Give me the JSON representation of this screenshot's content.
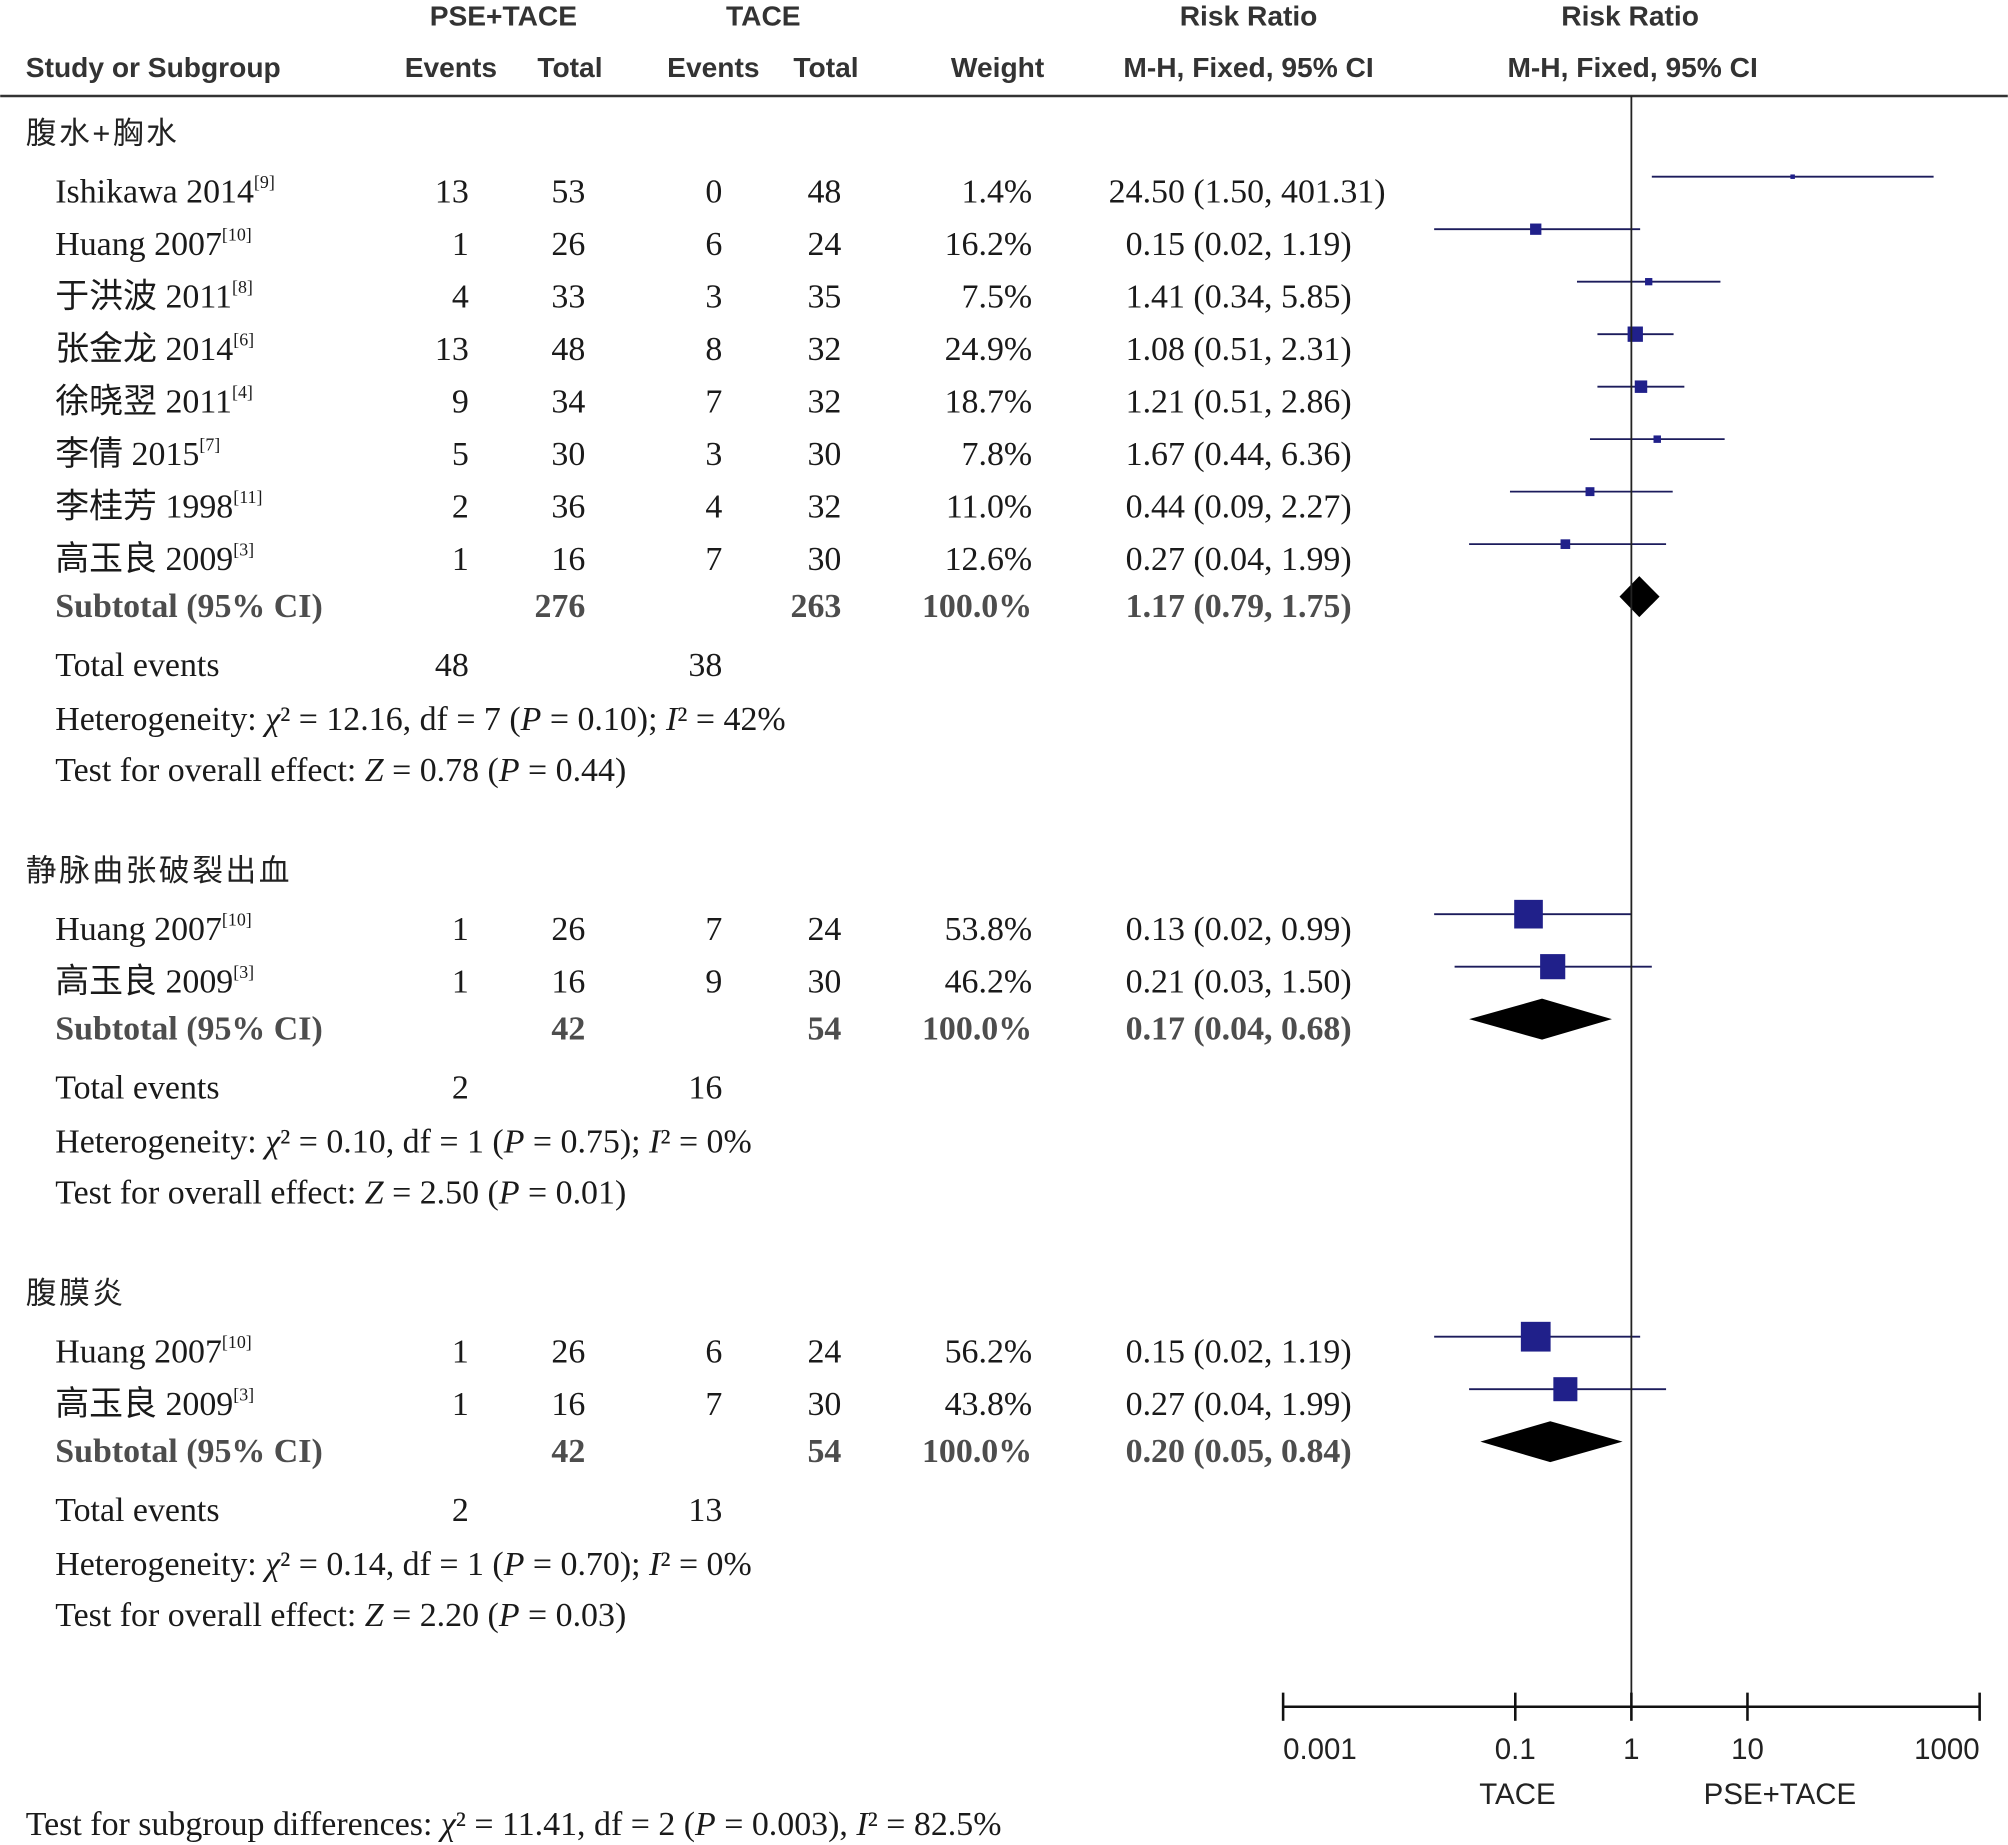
{
  "chart_data": {
    "type": "scatter",
    "variant": "forest-plot",
    "x_scale": "log",
    "xlim": [
      0.001,
      1000
    ],
    "x_ticks": [
      "0.001",
      "0.1",
      "1",
      "10",
      "1000"
    ],
    "reference_line": 1,
    "favours_left": "TACE",
    "favours_right": "PSE+TACE",
    "columns": {
      "group_exp": "PSE+TACE",
      "group_ctrl": "TACE",
      "effect_title": "Risk Ratio",
      "plot_title": "Risk Ratio",
      "study": "Study or Subgroup",
      "events_exp": "Events",
      "total_exp": "Total",
      "events_ctrl": "Events",
      "total_ctrl": "Total",
      "weight": "Weight",
      "effect_method": "M-H, Fixed, 95% CI",
      "plot_method": "M-H, Fixed, 95% CI"
    },
    "subgroups": [
      {
        "name": "腹水+胸水",
        "studies": [
          {
            "name": "Ishikawa 2014",
            "ref": "[9]",
            "events_exp": 13,
            "total_exp": 53,
            "events_ctrl": 0,
            "total_ctrl": 48,
            "weight": "1.4%",
            "rr": 24.5,
            "ci_low": 1.5,
            "ci_high": 401.31,
            "ci_text": "24.50 (1.50, 401.31)"
          },
          {
            "name": "Huang 2007",
            "ref": "[10]",
            "events_exp": 1,
            "total_exp": 26,
            "events_ctrl": 6,
            "total_ctrl": 24,
            "weight": "16.2%",
            "rr": 0.15,
            "ci_low": 0.02,
            "ci_high": 1.19,
            "ci_text": "0.15 (0.02, 1.19)"
          },
          {
            "name": "于洪波 2011",
            "ref": "[8]",
            "events_exp": 4,
            "total_exp": 33,
            "events_ctrl": 3,
            "total_ctrl": 35,
            "weight": "7.5%",
            "rr": 1.41,
            "ci_low": 0.34,
            "ci_high": 5.85,
            "ci_text": "1.41 (0.34, 5.85)"
          },
          {
            "name": "张金龙 2014",
            "ref": "[6]",
            "events_exp": 13,
            "total_exp": 48,
            "events_ctrl": 8,
            "total_ctrl": 32,
            "weight": "24.9%",
            "rr": 1.08,
            "ci_low": 0.51,
            "ci_high": 2.31,
            "ci_text": "1.08 (0.51, 2.31)"
          },
          {
            "name": "徐晓翌 2011",
            "ref": "[4]",
            "events_exp": 9,
            "total_exp": 34,
            "events_ctrl": 7,
            "total_ctrl": 32,
            "weight": "18.7%",
            "rr": 1.21,
            "ci_low": 0.51,
            "ci_high": 2.86,
            "ci_text": "1.21 (0.51, 2.86)"
          },
          {
            "name": "李倩 2015",
            "ref": "[7]",
            "events_exp": 5,
            "total_exp": 30,
            "events_ctrl": 3,
            "total_ctrl": 30,
            "weight": "7.8%",
            "rr": 1.67,
            "ci_low": 0.44,
            "ci_high": 6.36,
            "ci_text": "1.67 (0.44, 6.36)"
          },
          {
            "name": "李桂芳 1998",
            "ref": "[11]",
            "events_exp": 2,
            "total_exp": 36,
            "events_ctrl": 4,
            "total_ctrl": 32,
            "weight": "11.0%",
            "rr": 0.44,
            "ci_low": 0.09,
            "ci_high": 2.27,
            "ci_text": "0.44 (0.09, 2.27)"
          },
          {
            "name": "高玉良 2009",
            "ref": "[3]",
            "events_exp": 1,
            "total_exp": 16,
            "events_ctrl": 7,
            "total_ctrl": 30,
            "weight": "12.6%",
            "rr": 0.27,
            "ci_low": 0.04,
            "ci_high": 1.99,
            "ci_text": "0.27 (0.04, 1.99)"
          }
        ],
        "subtotal": {
          "label": "Subtotal (95% CI)",
          "total_exp": 276,
          "total_ctrl": 263,
          "weight": "100.0%",
          "rr": 1.17,
          "ci_low": 0.79,
          "ci_high": 1.75,
          "ci_text": "1.17 (0.79, 1.75)"
        },
        "total_events": {
          "label": "Total events",
          "exp": 48,
          "ctrl": 38
        },
        "heterogeneity": "Heterogeneity: χ² = 12.16, df = 7 (P = 0.10); I² = 42%",
        "overall_effect": "Test for overall effect: Z = 0.78 (P = 0.44)"
      },
      {
        "name": "静脉曲张破裂出血",
        "studies": [
          {
            "name": "Huang 2007",
            "ref": "[10]",
            "events_exp": 1,
            "total_exp": 26,
            "events_ctrl": 7,
            "total_ctrl": 24,
            "weight": "53.8%",
            "rr": 0.13,
            "ci_low": 0.02,
            "ci_high": 0.99,
            "ci_text": "0.13 (0.02, 0.99)"
          },
          {
            "name": "高玉良 2009",
            "ref": "[3]",
            "events_exp": 1,
            "total_exp": 16,
            "events_ctrl": 9,
            "total_ctrl": 30,
            "weight": "46.2%",
            "rr": 0.21,
            "ci_low": 0.03,
            "ci_high": 1.5,
            "ci_text": "0.21 (0.03, 1.50)"
          }
        ],
        "subtotal": {
          "label": "Subtotal (95% CI)",
          "total_exp": 42,
          "total_ctrl": 54,
          "weight": "100.0%",
          "rr": 0.17,
          "ci_low": 0.04,
          "ci_high": 0.68,
          "ci_text": "0.17 (0.04, 0.68)"
        },
        "total_events": {
          "label": "Total events",
          "exp": 2,
          "ctrl": 16
        },
        "heterogeneity": "Heterogeneity: χ² = 0.10, df = 1 (P = 0.75); I² = 0%",
        "overall_effect": "Test for overall effect: Z = 2.50 (P = 0.01)"
      },
      {
        "name": "腹膜炎",
        "studies": [
          {
            "name": "Huang 2007",
            "ref": "[10]",
            "events_exp": 1,
            "total_exp": 26,
            "events_ctrl": 6,
            "total_ctrl": 24,
            "weight": "56.2%",
            "rr": 0.15,
            "ci_low": 0.02,
            "ci_high": 1.19,
            "ci_text": "0.15 (0.02, 1.19)"
          },
          {
            "name": "高玉良 2009",
            "ref": "[3]",
            "events_exp": 1,
            "total_exp": 16,
            "events_ctrl": 7,
            "total_ctrl": 30,
            "weight": "43.8%",
            "rr": 0.27,
            "ci_low": 0.04,
            "ci_high": 1.99,
            "ci_text": "0.27 (0.04, 1.99)"
          }
        ],
        "subtotal": {
          "label": "Subtotal (95% CI)",
          "total_exp": 42,
          "total_ctrl": 54,
          "weight": "100.0%",
          "rr": 0.2,
          "ci_low": 0.05,
          "ci_high": 0.84,
          "ci_text": "0.20 (0.05, 0.84)"
        },
        "total_events": {
          "label": "Total events",
          "exp": 2,
          "ctrl": 13
        },
        "heterogeneity": "Heterogeneity: χ² = 0.14, df = 1 (P = 0.70); I² = 0%",
        "overall_effect": "Test for overall effect: Z = 2.20 (P = 0.03)"
      }
    ],
    "subgroup_differences": "Test for subgroup differences: χ² = 11.41, df = 2 (P = 0.003), I² = 82.5%"
  },
  "colors": {
    "marker": "#20208a",
    "ci_line": "#1c1c5c",
    "diamond": "#000000"
  }
}
